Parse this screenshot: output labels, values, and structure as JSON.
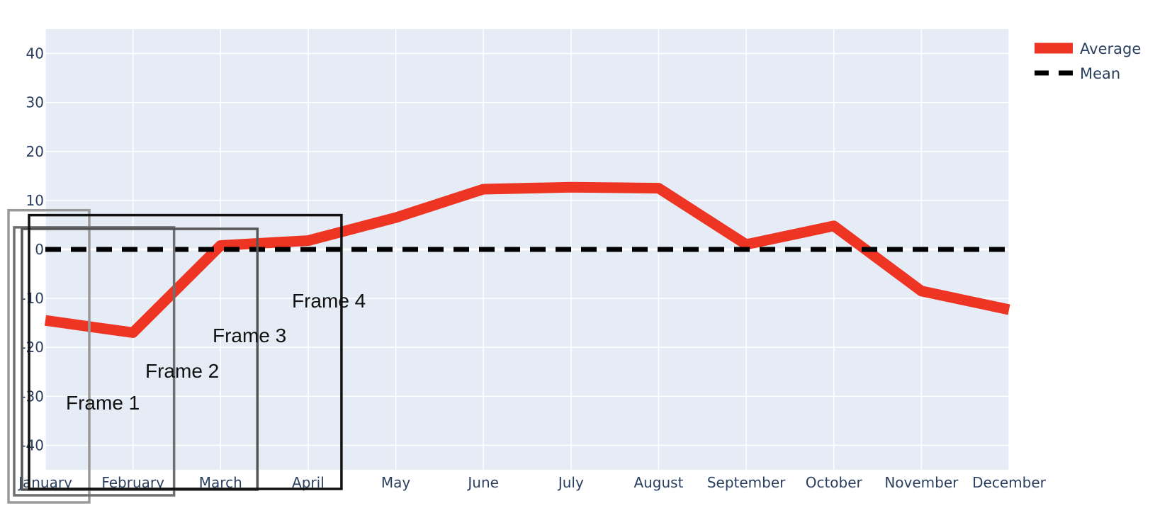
{
  "chart_data": {
    "type": "line",
    "categories": [
      "January",
      "February",
      "March",
      "April",
      "May",
      "June",
      "July",
      "August",
      "September",
      "October",
      "November",
      "December"
    ],
    "series": [
      {
        "name": "Average",
        "color": "#ee3524",
        "style": "solid",
        "values": [
          -14.5,
          -17,
          0.8,
          1.8,
          6.5,
          12.3,
          12.7,
          12.5,
          1.0,
          4.8,
          -8.5,
          -12.3
        ]
      },
      {
        "name": "Mean",
        "color": "#000000",
        "style": "dash",
        "values": [
          0,
          0,
          0,
          0,
          0,
          0,
          0,
          0,
          0,
          0,
          0,
          0
        ]
      }
    ],
    "yticks": [
      40,
      30,
      20,
      10,
      0,
      -10,
      -20,
      -30,
      -40
    ],
    "ylim": [
      -45,
      45
    ],
    "grid": true,
    "legend_position": "top-right",
    "plot_background": "#e5ecf6",
    "annotations": [
      {
        "text": "Frame 1",
        "x_start": "January",
        "x_end": "January",
        "y_top": 8,
        "y_bottom": -45,
        "color": "#999999"
      },
      {
        "text": "Frame 2",
        "x_start": "January",
        "x_end": "February",
        "y_top": 4.5,
        "y_bottom": -45,
        "color": "#6e6e6e"
      },
      {
        "text": "Frame 3",
        "x_start": "January",
        "x_end": "March",
        "y_top": 4.2,
        "y_bottom": -45,
        "color": "#555555"
      },
      {
        "text": "Frame 4",
        "x_start": "January",
        "x_end": "April",
        "y_top": 7,
        "y_bottom": -45,
        "color": "#111111"
      }
    ]
  }
}
